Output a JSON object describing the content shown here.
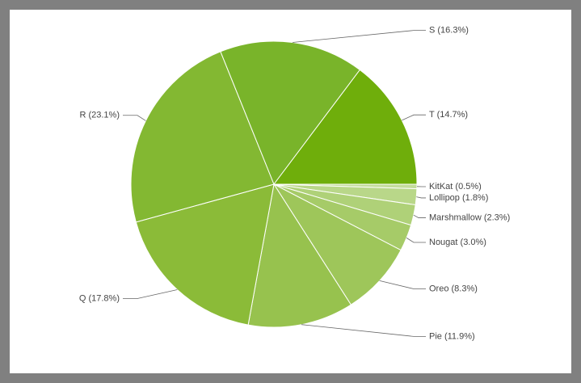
{
  "chart_data": {
    "type": "pie",
    "values": [
      0.5,
      1.8,
      2.3,
      3.0,
      8.3,
      11.9,
      17.8,
      23.1,
      16.3,
      14.7
    ],
    "value_labels": [
      "KitKat (0.5%)",
      "Lollipop (1.8%)",
      "Marshmallow (2.3%)",
      "Nougat (3.0%)",
      "Oreo (8.3%)",
      "Pie (11.9%)",
      "Q (17.8%)",
      "R (23.1%)",
      "S (16.3%)",
      "T (14.7%)"
    ],
    "colors": [
      "#c3dc9b",
      "#b9d789",
      "#afd178",
      "#a6cb68",
      "#9ec65a",
      "#97c24e",
      "#8bbb38",
      "#83b832",
      "#79b42a",
      "#6fae0b"
    ]
  }
}
